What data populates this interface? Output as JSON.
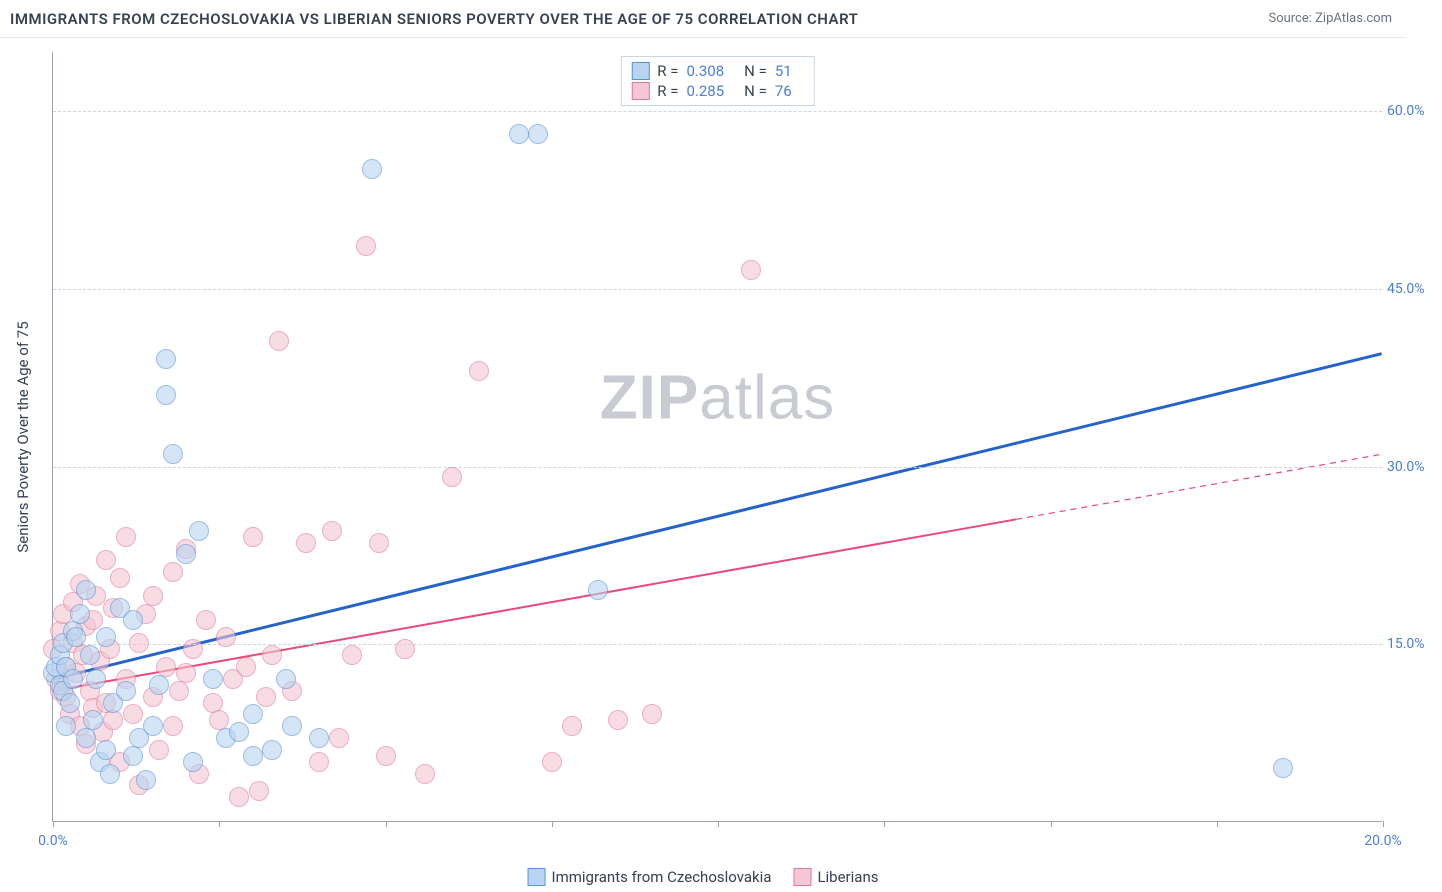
{
  "title": "IMMIGRANTS FROM CZECHOSLOVAKIA VS LIBERIAN SENIORS POVERTY OVER THE AGE OF 75 CORRELATION CHART",
  "source": "Source: ZipAtlas.com",
  "ylabel": "Seniors Poverty Over the Age of 75",
  "watermark_bold": "ZIP",
  "watermark_rest": "atlas",
  "chart": {
    "type": "scatter-with-trendlines",
    "background_color": "#ffffff",
    "grid_color": "#d1d5db",
    "axis_color": "#9ca3af",
    "axis_label_color": "#4a7fd8",
    "text_color": "#374151",
    "title_fontsize": 15,
    "label_fontsize": 15,
    "tick_fontsize": 14,
    "point_radius": 10,
    "point_opacity": 0.6,
    "xlim": [
      0,
      20
    ],
    "ylim": [
      0,
      65
    ],
    "x_ticks": [
      0,
      2.5,
      5,
      7.5,
      10,
      12.5,
      15,
      17.5,
      20
    ],
    "x_tick_labels": {
      "0": "0.0%",
      "20": "20.0%"
    },
    "y_gridlines": [
      15,
      30,
      45,
      60
    ],
    "y_tick_labels": {
      "15": "15.0%",
      "30": "30.0%",
      "45": "45.0%",
      "60": "60.0%"
    },
    "series": [
      {
        "key": "czech",
        "label": "Immigrants from Czechoslovakia",
        "fill": "#b8d4f0",
        "stroke": "#5b94d6",
        "R": "0.308",
        "N": "51",
        "trend": {
          "y0": 12.0,
          "y1": 39.5,
          "x_solid_end": 20.0,
          "color": "#2563c9",
          "width": 3
        },
        "points": [
          [
            0.0,
            12.5
          ],
          [
            0.05,
            13.0
          ],
          [
            0.1,
            11.5
          ],
          [
            0.1,
            14.0
          ],
          [
            0.15,
            11.0
          ],
          [
            0.15,
            15.0
          ],
          [
            0.2,
            8.0
          ],
          [
            0.2,
            13.0
          ],
          [
            0.25,
            10.0
          ],
          [
            0.3,
            12.0
          ],
          [
            0.3,
            16.0
          ],
          [
            0.35,
            15.5
          ],
          [
            0.4,
            17.5
          ],
          [
            0.5,
            19.5
          ],
          [
            0.5,
            7.0
          ],
          [
            0.55,
            14.0
          ],
          [
            0.6,
            8.5
          ],
          [
            0.65,
            12.0
          ],
          [
            0.7,
            5.0
          ],
          [
            0.8,
            6.0
          ],
          [
            0.8,
            15.5
          ],
          [
            0.85,
            4.0
          ],
          [
            0.9,
            10.0
          ],
          [
            1.0,
            18.0
          ],
          [
            1.1,
            11.0
          ],
          [
            1.2,
            17.0
          ],
          [
            1.2,
            5.5
          ],
          [
            1.3,
            7.0
          ],
          [
            1.4,
            3.5
          ],
          [
            1.5,
            8.0
          ],
          [
            1.6,
            11.5
          ],
          [
            1.7,
            39.0
          ],
          [
            1.7,
            36.0
          ],
          [
            1.8,
            31.0
          ],
          [
            2.0,
            22.5
          ],
          [
            2.1,
            5.0
          ],
          [
            2.2,
            24.5
          ],
          [
            2.4,
            12.0
          ],
          [
            2.6,
            7.0
          ],
          [
            2.8,
            7.5
          ],
          [
            3.0,
            5.5
          ],
          [
            3.0,
            9.0
          ],
          [
            3.3,
            6.0
          ],
          [
            3.5,
            12.0
          ],
          [
            3.6,
            8.0
          ],
          [
            4.0,
            7.0
          ],
          [
            4.8,
            55.0
          ],
          [
            7.0,
            58.0
          ],
          [
            7.3,
            58.0
          ],
          [
            8.2,
            19.5
          ],
          [
            18.5,
            4.5
          ]
        ]
      },
      {
        "key": "liberian",
        "label": "Liberians",
        "fill": "#f5c6d3",
        "stroke": "#e07a9b",
        "R": "0.285",
        "N": "76",
        "trend": {
          "y0": 11.0,
          "y1": 31.0,
          "x_solid_end": 14.5,
          "color": "#e84a7a",
          "width": 2
        },
        "points": [
          [
            0.0,
            14.5
          ],
          [
            0.05,
            12.0
          ],
          [
            0.1,
            16.0
          ],
          [
            0.1,
            11.0
          ],
          [
            0.15,
            17.5
          ],
          [
            0.2,
            10.5
          ],
          [
            0.2,
            13.0
          ],
          [
            0.25,
            9.0
          ],
          [
            0.3,
            18.5
          ],
          [
            0.3,
            15.0
          ],
          [
            0.35,
            12.5
          ],
          [
            0.4,
            8.0
          ],
          [
            0.4,
            20.0
          ],
          [
            0.45,
            14.0
          ],
          [
            0.5,
            6.5
          ],
          [
            0.5,
            16.5
          ],
          [
            0.55,
            11.0
          ],
          [
            0.6,
            9.5
          ],
          [
            0.6,
            17.0
          ],
          [
            0.65,
            19.0
          ],
          [
            0.7,
            13.5
          ],
          [
            0.75,
            7.5
          ],
          [
            0.8,
            10.0
          ],
          [
            0.8,
            22.0
          ],
          [
            0.85,
            14.5
          ],
          [
            0.9,
            8.5
          ],
          [
            0.9,
            18.0
          ],
          [
            1.0,
            5.0
          ],
          [
            1.0,
            20.5
          ],
          [
            1.1,
            12.0
          ],
          [
            1.1,
            24.0
          ],
          [
            1.2,
            9.0
          ],
          [
            1.3,
            15.0
          ],
          [
            1.3,
            3.0
          ],
          [
            1.4,
            17.5
          ],
          [
            1.5,
            10.5
          ],
          [
            1.5,
            19.0
          ],
          [
            1.6,
            6.0
          ],
          [
            1.7,
            13.0
          ],
          [
            1.8,
            8.0
          ],
          [
            1.8,
            21.0
          ],
          [
            1.9,
            11.0
          ],
          [
            2.0,
            12.5
          ],
          [
            2.0,
            23.0
          ],
          [
            2.1,
            14.5
          ],
          [
            2.2,
            4.0
          ],
          [
            2.3,
            17.0
          ],
          [
            2.4,
            10.0
          ],
          [
            2.5,
            8.5
          ],
          [
            2.6,
            15.5
          ],
          [
            2.7,
            12.0
          ],
          [
            2.8,
            2.0
          ],
          [
            2.9,
            13.0
          ],
          [
            3.0,
            24.0
          ],
          [
            3.1,
            2.5
          ],
          [
            3.2,
            10.5
          ],
          [
            3.3,
            14.0
          ],
          [
            3.4,
            40.5
          ],
          [
            3.6,
            11.0
          ],
          [
            3.8,
            23.5
          ],
          [
            4.0,
            5.0
          ],
          [
            4.2,
            24.5
          ],
          [
            4.3,
            7.0
          ],
          [
            4.5,
            14.0
          ],
          [
            4.7,
            48.5
          ],
          [
            4.9,
            23.5
          ],
          [
            5.0,
            5.5
          ],
          [
            5.3,
            14.5
          ],
          [
            5.6,
            4.0
          ],
          [
            6.0,
            29.0
          ],
          [
            6.4,
            38.0
          ],
          [
            7.5,
            5.0
          ],
          [
            7.8,
            8.0
          ],
          [
            8.5,
            8.5
          ],
          [
            9.0,
            9.0
          ],
          [
            10.5,
            46.5
          ]
        ]
      }
    ]
  },
  "legend_top_labels": {
    "R": "R =",
    "N": "N ="
  }
}
